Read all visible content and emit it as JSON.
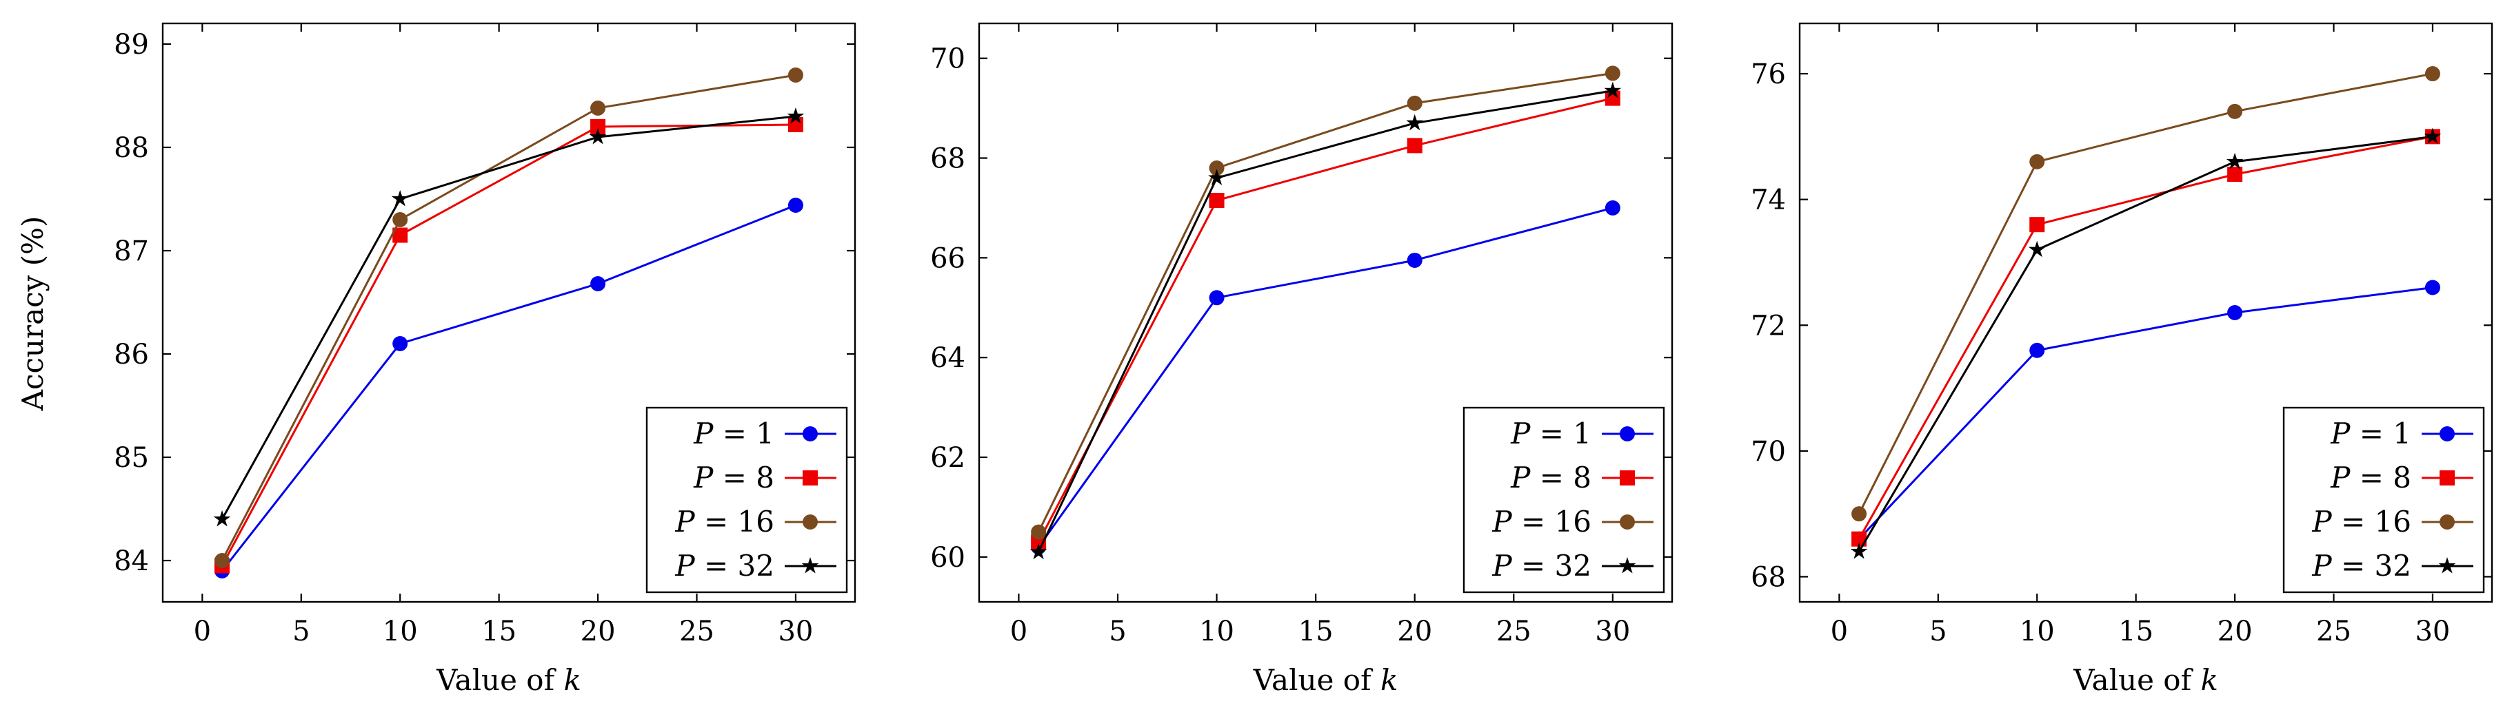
{
  "figure": {
    "ylabel": "Accuracy (%)"
  },
  "chart_data": [
    {
      "type": "line",
      "xlabel": "Value of k",
      "ylabel": "Accuracy (%)",
      "xlim": [
        -2,
        33
      ],
      "ylim": [
        83.6,
        89.2
      ],
      "xticks": [
        0,
        5,
        10,
        15,
        20,
        25,
        30
      ],
      "yticks": [
        84,
        85,
        86,
        87,
        88,
        89
      ],
      "legend_position": "bottom-right",
      "grid": false,
      "x": [
        1,
        10,
        20,
        30
      ],
      "series": [
        {
          "name": "P = 1",
          "p": "1",
          "color": "#0000ee",
          "marker": "circle",
          "values": [
            83.9,
            86.1,
            86.68,
            87.44
          ]
        },
        {
          "name": "P = 8",
          "p": "8",
          "color": "#ee0000",
          "marker": "square",
          "values": [
            83.95,
            87.15,
            88.2,
            88.22
          ]
        },
        {
          "name": "P = 16",
          "p": "16",
          "color": "#7a4a1e",
          "marker": "circle",
          "values": [
            84.0,
            87.3,
            88.38,
            88.7
          ]
        },
        {
          "name": "P = 32",
          "p": "32",
          "color": "#000000",
          "marker": "star",
          "values": [
            84.4,
            87.5,
            88.1,
            88.3
          ]
        }
      ]
    },
    {
      "type": "line",
      "xlabel": "Value of k",
      "ylabel": "",
      "xlim": [
        -2,
        33
      ],
      "ylim": [
        59.1,
        70.7
      ],
      "xticks": [
        0,
        5,
        10,
        15,
        20,
        25,
        30
      ],
      "yticks": [
        60,
        62,
        64,
        66,
        68,
        70
      ],
      "legend_position": "bottom-right",
      "grid": false,
      "x": [
        1,
        10,
        20,
        30
      ],
      "series": [
        {
          "name": "P = 1",
          "p": "1",
          "color": "#0000ee",
          "marker": "circle",
          "values": [
            60.2,
            65.2,
            65.95,
            67.0
          ]
        },
        {
          "name": "P = 8",
          "p": "8",
          "color": "#ee0000",
          "marker": "square",
          "values": [
            60.3,
            67.15,
            68.25,
            69.2
          ]
        },
        {
          "name": "P = 16",
          "p": "16",
          "color": "#7a4a1e",
          "marker": "circle",
          "values": [
            60.5,
            67.8,
            69.1,
            69.7
          ]
        },
        {
          "name": "P = 32",
          "p": "32",
          "color": "#000000",
          "marker": "star",
          "values": [
            60.1,
            67.6,
            68.7,
            69.35
          ]
        }
      ]
    },
    {
      "type": "line",
      "xlabel": "Value of k",
      "ylabel": "",
      "xlim": [
        -2,
        33
      ],
      "ylim": [
        67.6,
        76.8
      ],
      "xticks": [
        0,
        5,
        10,
        15,
        20,
        25,
        30
      ],
      "yticks": [
        68,
        70,
        72,
        74,
        76
      ],
      "legend_position": "bottom-right",
      "grid": false,
      "x": [
        1,
        10,
        20,
        30
      ],
      "series": [
        {
          "name": "P = 1",
          "p": "1",
          "color": "#0000ee",
          "marker": "circle",
          "values": [
            68.6,
            71.6,
            72.2,
            72.6
          ]
        },
        {
          "name": "P = 8",
          "p": "8",
          "color": "#ee0000",
          "marker": "square",
          "values": [
            68.6,
            73.6,
            74.4,
            75.0
          ]
        },
        {
          "name": "P = 16",
          "p": "16",
          "color": "#7a4a1e",
          "marker": "circle",
          "values": [
            69.0,
            74.6,
            75.4,
            76.0
          ]
        },
        {
          "name": "P = 32",
          "p": "32",
          "color": "#000000",
          "marker": "star",
          "values": [
            68.4,
            73.2,
            74.6,
            75.0
          ]
        }
      ]
    }
  ]
}
